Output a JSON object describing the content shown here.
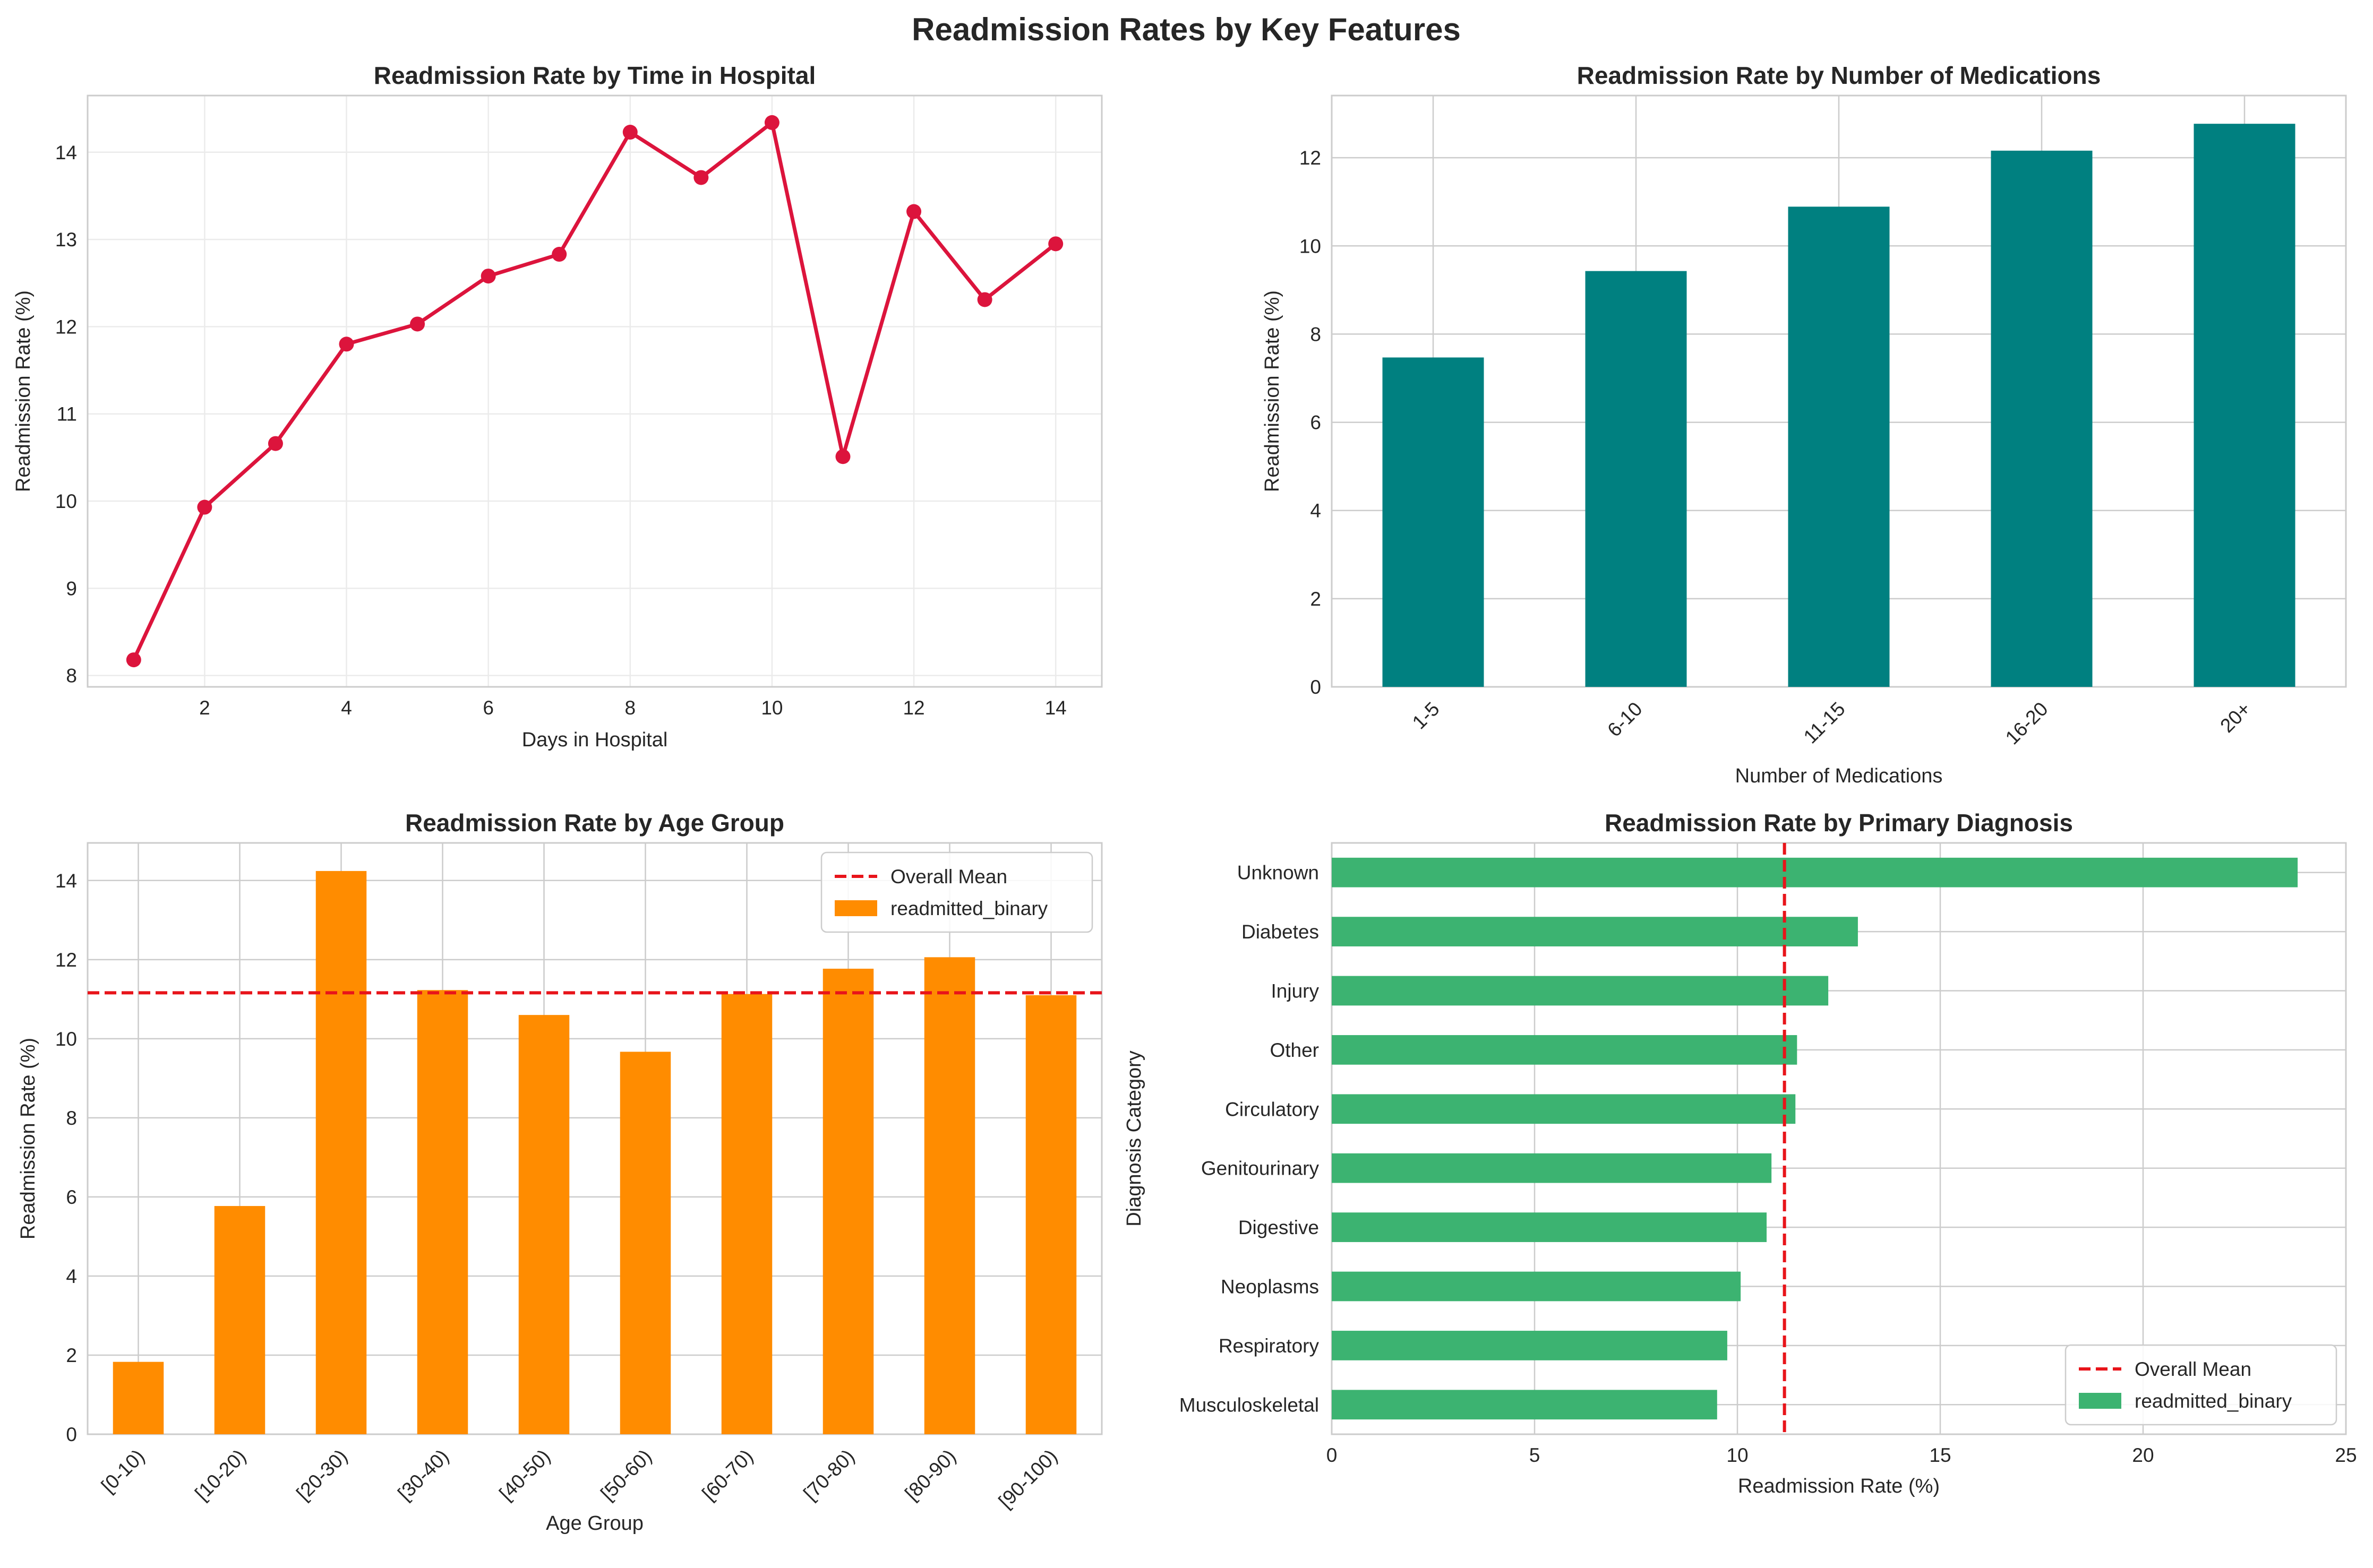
{
  "suptitle": "Readmission Rates by Key Features",
  "colors": {
    "line": "#dc143c",
    "meds_bar": "#008080",
    "age_bar": "#ff8c00",
    "diag_bar": "#3cb371",
    "mean_line": "#e8141a",
    "grid": "#cccccc",
    "grid_light": "#ebebeb",
    "spine": "#cccccc"
  },
  "chart_data": [
    {
      "id": "time",
      "type": "line",
      "title": "Readmission Rate by Time in Hospital",
      "xlabel": "Days in Hospital",
      "ylabel": "Readmission Rate (%)",
      "x": [
        1,
        2,
        3,
        4,
        5,
        6,
        7,
        8,
        9,
        10,
        11,
        12,
        13,
        14
      ],
      "values": [
        8.18,
        9.93,
        10.66,
        11.8,
        12.03,
        12.58,
        12.83,
        14.23,
        13.71,
        14.34,
        10.51,
        13.32,
        12.31,
        12.95
      ],
      "xlim": [
        0.35,
        14.65
      ],
      "ylim": [
        7.87,
        14.65
      ],
      "xticks": [
        2,
        4,
        6,
        8,
        10,
        12,
        14
      ],
      "yticks": [
        8,
        9,
        10,
        11,
        12,
        13,
        14
      ],
      "grid": true
    },
    {
      "id": "meds",
      "type": "bar",
      "title": "Readmission Rate by Number of Medications",
      "xlabel": "Number of Medications",
      "ylabel": "Readmission Rate (%)",
      "categories": [
        "1-5",
        "6-10",
        "11-15",
        "16-20",
        "20+"
      ],
      "values": [
        7.47,
        9.43,
        10.89,
        12.16,
        12.77
      ],
      "ylim": [
        0,
        13.41
      ],
      "yticks": [
        0,
        2,
        4,
        6,
        8,
        10,
        12
      ],
      "grid": true
    },
    {
      "id": "age",
      "type": "bar",
      "title": "Readmission Rate by Age Group",
      "xlabel": "Age Group",
      "ylabel": "Readmission Rate (%)",
      "categories": [
        "[0-10)",
        "[10-20)",
        "[20-30)",
        "[30-40)",
        "[40-50)",
        "[50-60)",
        "[60-70)",
        "[70-80)",
        "[80-90)",
        "[90-100)"
      ],
      "values": [
        1.83,
        5.77,
        14.24,
        11.23,
        10.6,
        9.67,
        11.13,
        11.77,
        12.06,
        11.1
      ],
      "mean": 11.16,
      "ylim": [
        0,
        14.95
      ],
      "yticks": [
        0,
        2,
        4,
        6,
        8,
        10,
        12,
        14
      ],
      "grid": true,
      "legend": {
        "position": "upper right",
        "entries": [
          "Overall Mean",
          "readmitted_binary"
        ]
      }
    },
    {
      "id": "diag",
      "type": "barh",
      "title": "Readmission Rate by Primary Diagnosis",
      "xlabel": "Readmission Rate (%)",
      "ylabel": "Diagnosis Category",
      "categories": [
        "Unknown",
        "Diabetes",
        "Injury",
        "Other",
        "Circulatory",
        "Genitourinary",
        "Digestive",
        "Neoplasms",
        "Respiratory",
        "Musculoskeletal"
      ],
      "values": [
        23.81,
        12.97,
        12.24,
        11.47,
        11.43,
        10.84,
        10.72,
        10.08,
        9.75,
        9.5
      ],
      "mean": 11.16,
      "xlim": [
        0,
        25
      ],
      "xticks": [
        0,
        5,
        10,
        15,
        20,
        25
      ],
      "grid": true,
      "legend": {
        "position": "lower right",
        "entries": [
          "Overall Mean",
          "readmitted_binary"
        ]
      }
    }
  ]
}
